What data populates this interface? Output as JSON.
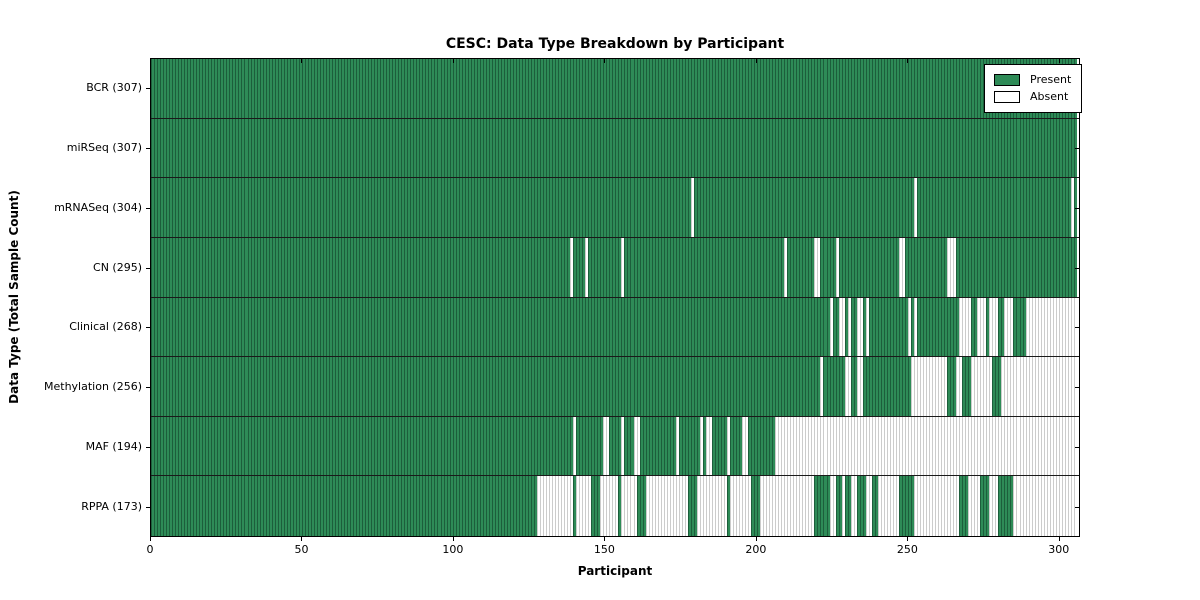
{
  "colors": {
    "present": "#2e8b57",
    "present_edge": "#1c5e3b",
    "absent": "#ffffff",
    "absent_edge": "#cccccc",
    "row_divider": "#1a1a1a",
    "plot_border": "#000000"
  },
  "legend": {
    "present_label": "Present",
    "absent_label": "Absent"
  },
  "chart_data": {
    "type": "heatmap",
    "title": "CESC: Data Type Breakdown by Participant",
    "xlabel": "Participant",
    "ylabel": "Data Type (Total Sample Count)",
    "legend_entries": [
      "Present",
      "Absent"
    ],
    "legend_position": "upper right",
    "grid": false,
    "n_participants": 307,
    "x_ticks": [
      0,
      50,
      100,
      150,
      200,
      250,
      300
    ],
    "xlim": [
      0,
      307
    ],
    "note": "Each row shows per-participant data presence (green = present, white = absent). absent_runs are inclusive [start,end] participant index ranges (0-306).",
    "rows": [
      {
        "name": "BCR",
        "label": "BCR (307)",
        "present_count": 307,
        "absent_count": 0,
        "absent_runs": []
      },
      {
        "name": "miRSeq",
        "label": "miRSeq (307)",
        "present_count": 307,
        "absent_count": 0,
        "absent_runs": []
      },
      {
        "name": "mRNASeq",
        "label": "mRNASeq (304)",
        "present_count": 304,
        "absent_count": 3,
        "absent_runs": [
          [
            179,
            179
          ],
          [
            253,
            253
          ],
          [
            305,
            305
          ]
        ]
      },
      {
        "name": "CN",
        "label": "CN (295)",
        "present_count": 295,
        "absent_count": 12,
        "absent_runs": [
          [
            139,
            139
          ],
          [
            144,
            144
          ],
          [
            156,
            156
          ],
          [
            210,
            210
          ],
          [
            220,
            221
          ],
          [
            227,
            227
          ],
          [
            248,
            249
          ],
          [
            264,
            266
          ]
        ]
      },
      {
        "name": "Clinical",
        "label": "Clinical (268)",
        "present_count": 268,
        "absent_count": 39,
        "absent_runs": [
          [
            225,
            225
          ],
          [
            228,
            229
          ],
          [
            231,
            231
          ],
          [
            234,
            235
          ],
          [
            237,
            237
          ],
          [
            251,
            251
          ],
          [
            253,
            253
          ],
          [
            268,
            271
          ],
          [
            274,
            276
          ],
          [
            278,
            280
          ],
          [
            283,
            285
          ],
          [
            290,
            306
          ]
        ]
      },
      {
        "name": "Methylation",
        "label": "Methylation (256)",
        "present_count": 256,
        "absent_count": 51,
        "absent_runs": [
          [
            222,
            222
          ],
          [
            230,
            231
          ],
          [
            234,
            235
          ],
          [
            252,
            263
          ],
          [
            267,
            268
          ],
          [
            272,
            278
          ],
          [
            282,
            306
          ]
        ]
      },
      {
        "name": "MAF",
        "label": "MAF (194)",
        "present_count": 194,
        "absent_count": 113,
        "absent_runs": [
          [
            140,
            140
          ],
          [
            150,
            151
          ],
          [
            156,
            156
          ],
          [
            160,
            161
          ],
          [
            174,
            174
          ],
          [
            182,
            182
          ],
          [
            184,
            185
          ],
          [
            191,
            191
          ],
          [
            196,
            197
          ],
          [
            207,
            306
          ]
        ]
      },
      {
        "name": "RPPA",
        "label": "RPPA (173)",
        "present_count": 173,
        "absent_count": 134,
        "absent_runs": [
          [
            128,
            139
          ],
          [
            141,
            145
          ],
          [
            149,
            154
          ],
          [
            156,
            160
          ],
          [
            164,
            177
          ],
          [
            181,
            190
          ],
          [
            192,
            198
          ],
          [
            202,
            219
          ],
          [
            225,
            226
          ],
          [
            229,
            229
          ],
          [
            232,
            233
          ],
          [
            237,
            238
          ],
          [
            241,
            247
          ],
          [
            253,
            267
          ],
          [
            271,
            274
          ],
          [
            278,
            280
          ],
          [
            286,
            306
          ]
        ]
      }
    ]
  }
}
